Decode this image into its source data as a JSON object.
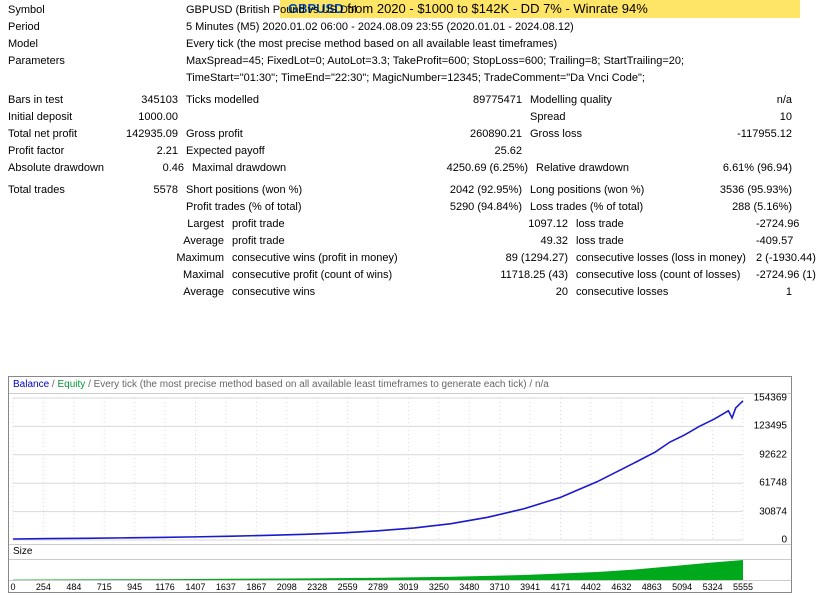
{
  "banner": {
    "pair": "GBPUSD",
    "rest": " from 2020 - $1000 to $142K - DD 7% - Winrate 94%",
    "bg_color": "#ffe566",
    "pair_color": "#0047b3"
  },
  "header": {
    "symbol_lbl": "Symbol",
    "symbol_val": "GBPUSD (British Pound vs US Dol",
    "period_lbl": "Period",
    "period_val": "5 Minutes (M5) 2020.01.02 06:00 - 2024.08.09 23:55 (2020.01.01 - 2024.08.12)",
    "model_lbl": "Model",
    "model_val": "Every tick (the most precise method based on all available least timeframes)",
    "param_lbl": "Parameters",
    "param_val1": "MaxSpread=45; FixedLot=0; AutoLot=3.3; TakeProfit=600; StopLoss=600; Trailing=8; StartTrailing=20;",
    "param_val2": "TimeStart=\"01:30\"; TimeEnd=\"22:30\"; MagicNumber=12345; TradeComment=\"Da Vnci Code\";"
  },
  "stats": {
    "bars_lbl": "Bars in test",
    "bars_val": "345103",
    "ticks_lbl": "Ticks modelled",
    "ticks_val": "89775471",
    "modq_lbl": "Modelling quality",
    "modq_val": "n/a",
    "idep_lbl": "Initial deposit",
    "idep_val": "1000.00",
    "spread_lbl": "Spread",
    "spread_val": "10",
    "tnp_lbl": "Total net profit",
    "tnp_val": "142935.09",
    "gp_lbl": "Gross profit",
    "gp_val": "260890.21",
    "gl_lbl": "Gross loss",
    "gl_val": "-117955.12",
    "pf_lbl": "Profit factor",
    "pf_val": "2.21",
    "ep_lbl": "Expected payoff",
    "ep_val": "25.62",
    "add_lbl": "Absolute drawdown",
    "add_val": "0.46",
    "mdd_lbl": "Maximal drawdown",
    "mdd_val": "4250.69 (6.25%)",
    "rdd_lbl": "Relative drawdown",
    "rdd_val": "6.61% (96.94)",
    "tt_lbl": "Total trades",
    "tt_val": "5578",
    "sp_lbl": "Short positions (won %)",
    "sp_val": "2042 (92.95%)",
    "lp_lbl": "Long positions (won %)",
    "lp_val": "3536 (95.93%)",
    "pt_lbl": "Profit trades (% of total)",
    "pt_val": "5290 (94.84%)",
    "lt_lbl": "Loss trades (% of total)",
    "lt_val": "288 (5.16%)",
    "largest_lbl": "Largest",
    "lg_pt_lbl": "profit trade",
    "lg_pt_val": "1097.12",
    "lg_lt_lbl": "loss trade",
    "lg_lt_val": "-2724.96",
    "average_lbl": "Average",
    "av_pt_lbl": "profit trade",
    "av_pt_val": "49.32",
    "av_lt_lbl": "loss trade",
    "av_lt_val": "-409.57",
    "maximum_lbl": "Maximum",
    "mx_cw_lbl": "consecutive wins (profit in money)",
    "mx_cw_val": "89 (1294.27)",
    "mx_cl_lbl": "consecutive losses (loss in money)",
    "mx_cl_val": "2 (-1930.44)",
    "maximal_lbl": "Maximal",
    "ml_cp_lbl": "consecutive profit (count of wins)",
    "ml_cp_val": "11718.25 (43)",
    "ml_cl_lbl": "consecutive loss (count of losses)",
    "ml_cl_val": "-2724.96 (1)",
    "avg2_lbl": "Average",
    "a2_cw_lbl": "consecutive wins",
    "a2_cw_val": "20",
    "a2_cl_lbl": "consecutive losses",
    "a2_cl_val": "1"
  },
  "chart": {
    "header_balance": "Balance",
    "header_equity": "Equity",
    "header_rest": " / Every tick (the most precise method based on all available least timeframes to generate each tick) / n/a",
    "size_label": "Size",
    "balance_color": "#1a1acc",
    "equity_color": "#00a81c",
    "grid_color": "#d9d9d9",
    "background_color": "#ffffff",
    "y_ticks": [
      "0",
      "30874",
      "61748",
      "92622",
      "123495",
      "154369"
    ],
    "x_ticks": [
      "0",
      "254",
      "484",
      "715",
      "945",
      "1176",
      "1407",
      "1637",
      "1867",
      "2098",
      "2328",
      "2559",
      "2789",
      "3019",
      "3250",
      "3480",
      "3710",
      "3941",
      "4171",
      "4402",
      "4632",
      "4863",
      "5094",
      "5324",
      "5555"
    ],
    "equity_series_norm": [
      [
        0.0,
        0.007
      ],
      [
        0.05,
        0.01
      ],
      [
        0.1,
        0.012
      ],
      [
        0.15,
        0.015
      ],
      [
        0.2,
        0.018
      ],
      [
        0.25,
        0.022
      ],
      [
        0.3,
        0.027
      ],
      [
        0.35,
        0.033
      ],
      [
        0.4,
        0.04
      ],
      [
        0.45,
        0.05
      ],
      [
        0.5,
        0.065
      ],
      [
        0.55,
        0.085
      ],
      [
        0.6,
        0.115
      ],
      [
        0.65,
        0.16
      ],
      [
        0.7,
        0.22
      ],
      [
        0.75,
        0.3
      ],
      [
        0.8,
        0.41
      ],
      [
        0.85,
        0.54
      ],
      [
        0.88,
        0.62
      ],
      [
        0.9,
        0.69
      ],
      [
        0.92,
        0.74
      ],
      [
        0.94,
        0.8
      ],
      [
        0.96,
        0.85
      ],
      [
        0.97,
        0.88
      ],
      [
        0.98,
        0.91
      ],
      [
        0.985,
        0.86
      ],
      [
        0.99,
        0.93
      ],
      [
        1.0,
        0.98
      ]
    ],
    "size_series_norm": [
      [
        0.0,
        0.02
      ],
      [
        0.1,
        0.03
      ],
      [
        0.2,
        0.04
      ],
      [
        0.3,
        0.06
      ],
      [
        0.4,
        0.08
      ],
      [
        0.5,
        0.11
      ],
      [
        0.6,
        0.16
      ],
      [
        0.7,
        0.25
      ],
      [
        0.8,
        0.4
      ],
      [
        0.85,
        0.52
      ],
      [
        0.9,
        0.68
      ],
      [
        0.95,
        0.85
      ],
      [
        1.0,
        1.0
      ]
    ]
  }
}
